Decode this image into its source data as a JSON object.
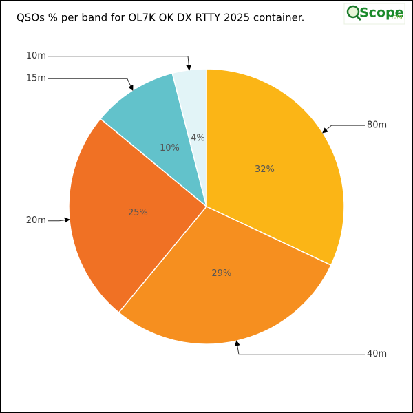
{
  "chart_data": {
    "type": "pie",
    "title": "QSOs % per band for OL7K OK DX RTTY 2025 container.",
    "categories": [
      "80m",
      "40m",
      "20m",
      "15m",
      "10m"
    ],
    "values": [
      32,
      29,
      25,
      10,
      4
    ],
    "value_labels": [
      "32%",
      "29%",
      "25%",
      "10%",
      "4%"
    ],
    "colors": [
      "#fbb516",
      "#f68f1f",
      "#f07124",
      "#62c2cb",
      "#e2f4f7"
    ]
  },
  "logo": {
    "text": "Scope",
    "suffix": ".org"
  }
}
